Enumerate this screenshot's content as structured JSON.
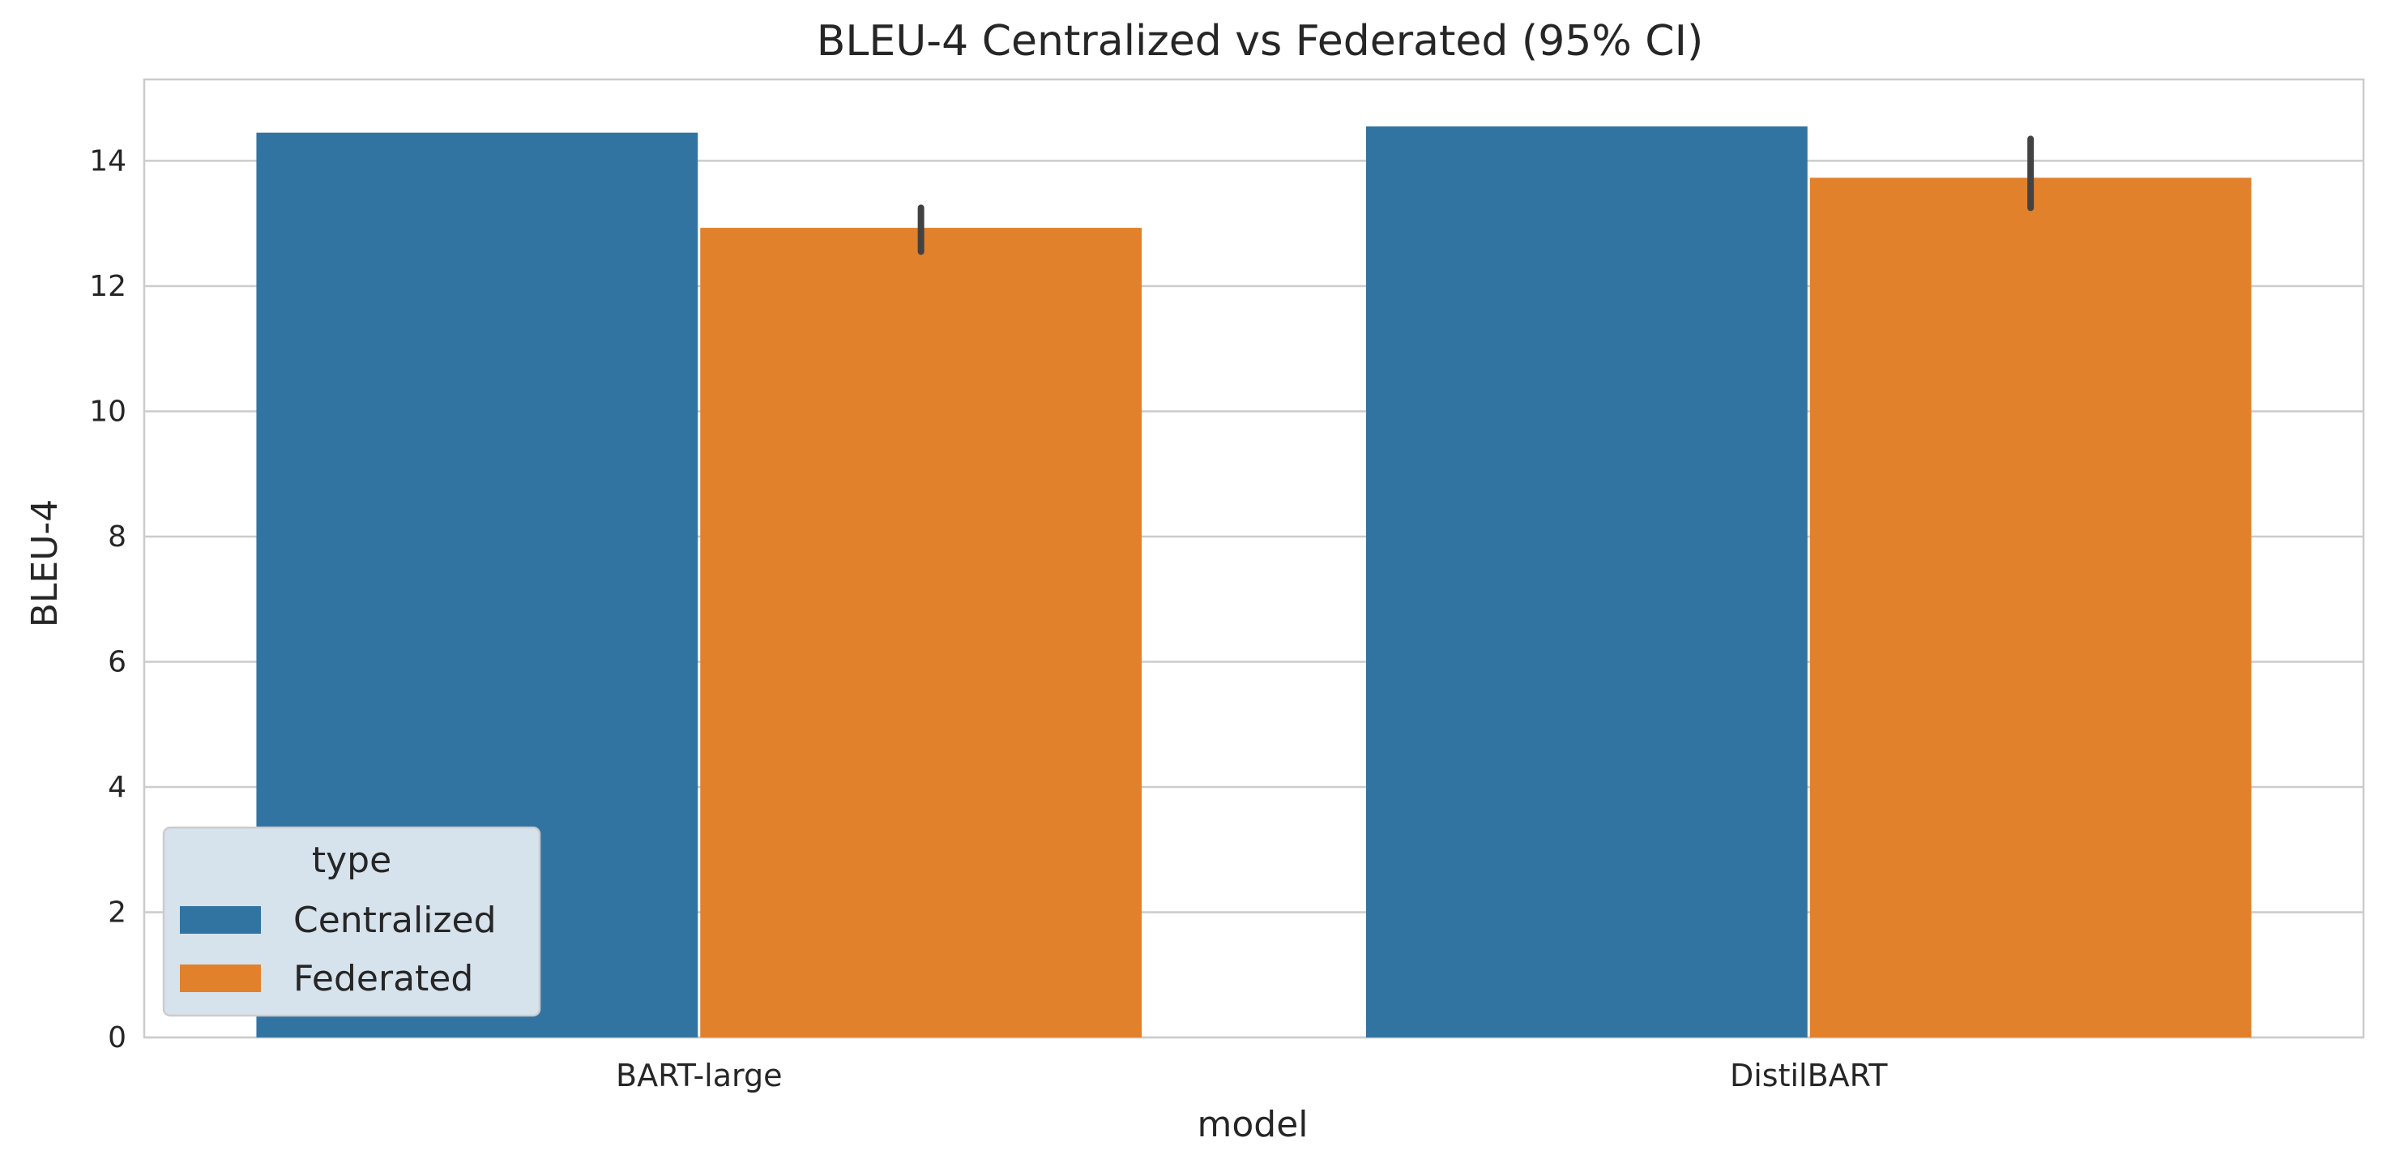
{
  "chart_data": {
    "type": "bar",
    "title": "BLEU-4 Centralized vs Federated (95% CI)",
    "xlabel": "model",
    "ylabel": "BLEU-4",
    "categories": [
      "BART-large",
      "DistilBART"
    ],
    "series": [
      {
        "name": "Centralized",
        "color": "#3274a1",
        "values": [
          14.45,
          14.55
        ],
        "ci": [
          null,
          null
        ]
      },
      {
        "name": "Federated",
        "color": "#e1812c",
        "values": [
          12.93,
          13.73
        ],
        "ci": [
          [
            12.55,
            13.25
          ],
          [
            13.25,
            14.35
          ]
        ]
      }
    ],
    "ylim": [
      0,
      15.3
    ],
    "yticks": [
      0,
      2,
      4,
      6,
      8,
      10,
      12,
      14
    ],
    "grid": "y",
    "legend": {
      "title": "type",
      "placement": "lower-left"
    }
  }
}
